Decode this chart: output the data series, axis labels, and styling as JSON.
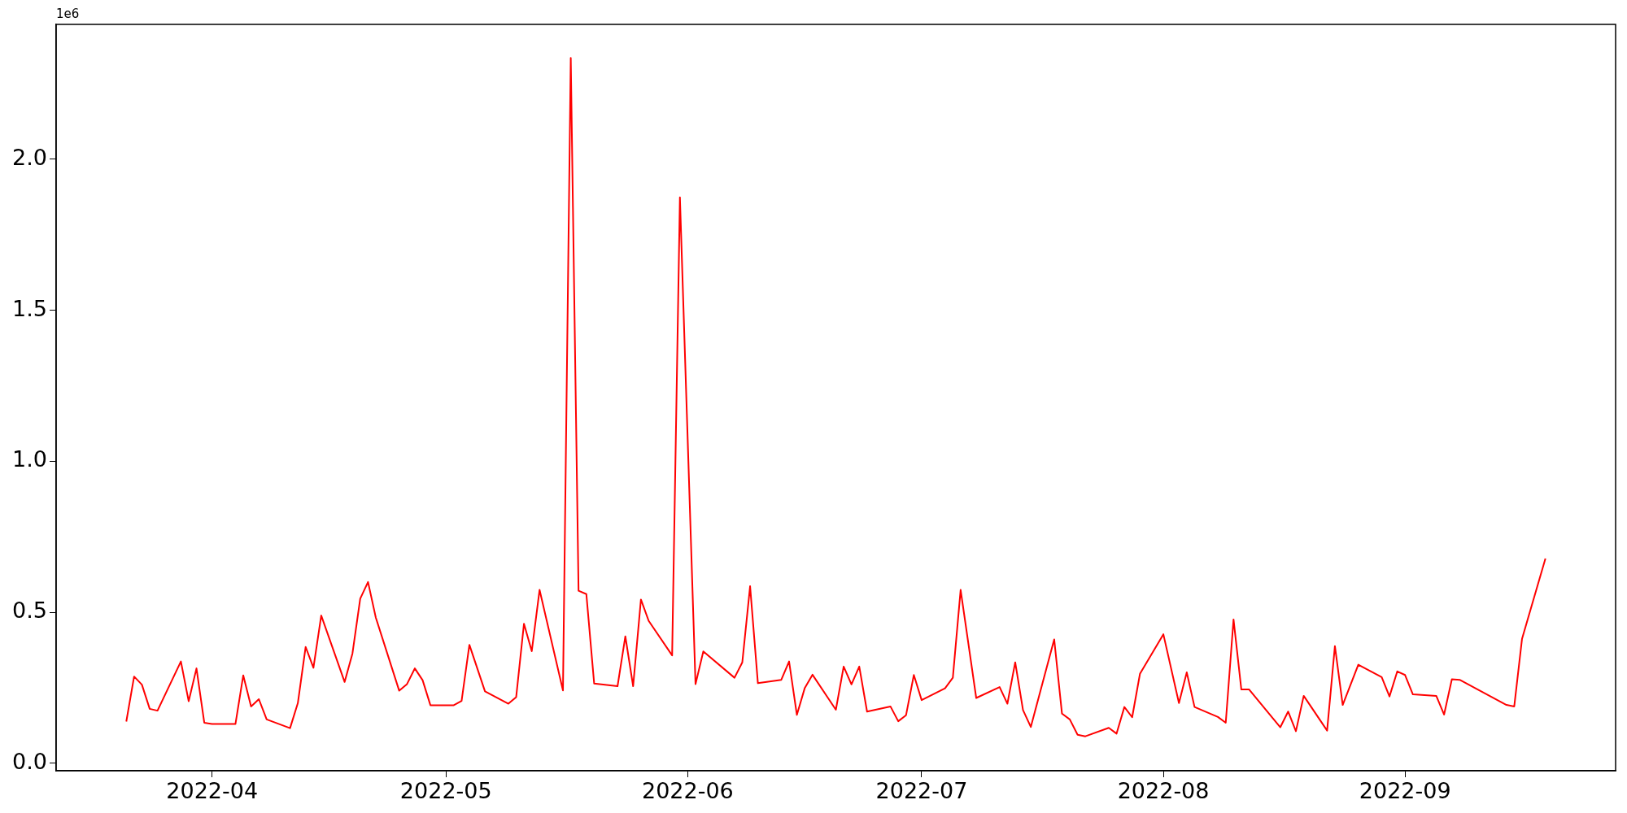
{
  "chart_data": {
    "type": "line",
    "color": "#ff0000",
    "marker": "none",
    "line_style": "solid",
    "x": [
      "2022-03-21",
      "2022-03-22",
      "2022-03-23",
      "2022-03-24",
      "2022-03-25",
      "2022-03-28",
      "2022-03-29",
      "2022-03-30",
      "2022-03-31",
      "2022-04-01",
      "2022-04-04",
      "2022-04-05",
      "2022-04-06",
      "2022-04-07",
      "2022-04-08",
      "2022-04-11",
      "2022-04-12",
      "2022-04-13",
      "2022-04-14",
      "2022-04-15",
      "2022-04-18",
      "2022-04-19",
      "2022-04-20",
      "2022-04-21",
      "2022-04-22",
      "2022-04-25",
      "2022-04-26",
      "2022-04-27",
      "2022-04-28",
      "2022-04-29",
      "2022-05-02",
      "2022-05-03",
      "2022-05-04",
      "2022-05-06",
      "2022-05-09",
      "2022-05-10",
      "2022-05-11",
      "2022-05-12",
      "2022-05-13",
      "2022-05-16",
      "2022-05-17",
      "2022-05-18",
      "2022-05-19",
      "2022-05-20",
      "2022-05-23",
      "2022-05-24",
      "2022-05-25",
      "2022-05-26",
      "2022-05-27",
      "2022-05-30",
      "2022-05-31",
      "2022-06-02",
      "2022-06-03",
      "2022-06-07",
      "2022-06-08",
      "2022-06-09",
      "2022-06-10",
      "2022-06-13",
      "2022-06-14",
      "2022-06-15",
      "2022-06-16",
      "2022-06-17",
      "2022-06-20",
      "2022-06-21",
      "2022-06-22",
      "2022-06-23",
      "2022-06-24",
      "2022-06-27",
      "2022-06-28",
      "2022-06-29",
      "2022-06-30",
      "2022-07-01",
      "2022-07-04",
      "2022-07-05",
      "2022-07-06",
      "2022-07-08",
      "2022-07-11",
      "2022-07-12",
      "2022-07-13",
      "2022-07-14",
      "2022-07-15",
      "2022-07-18",
      "2022-07-19",
      "2022-07-20",
      "2022-07-21",
      "2022-07-22",
      "2022-07-25",
      "2022-07-26",
      "2022-07-27",
      "2022-07-28",
      "2022-07-29",
      "2022-08-01",
      "2022-08-03",
      "2022-08-04",
      "2022-08-05",
      "2022-08-08",
      "2022-08-09",
      "2022-08-10",
      "2022-08-11",
      "2022-08-12",
      "2022-08-16",
      "2022-08-17",
      "2022-08-18",
      "2022-08-19",
      "2022-08-22",
      "2022-08-23",
      "2022-08-24",
      "2022-08-26",
      "2022-08-29",
      "2022-08-30",
      "2022-08-31",
      "2022-09-01",
      "2022-09-02",
      "2022-09-05",
      "2022-09-06",
      "2022-09-07",
      "2022-09-08",
      "2022-09-14",
      "2022-09-15",
      "2022-09-16",
      "2022-09-19"
    ],
    "values": [
      0.138,
      0.287,
      0.26,
      0.18,
      0.174,
      0.337,
      0.205,
      0.314,
      0.134,
      0.13,
      0.13,
      0.291,
      0.188,
      0.212,
      0.145,
      0.116,
      0.199,
      0.385,
      0.316,
      0.489,
      0.269,
      0.363,
      0.545,
      0.6,
      0.482,
      0.24,
      0.262,
      0.314,
      0.275,
      0.192,
      0.192,
      0.206,
      0.392,
      0.238,
      0.197,
      0.219,
      0.462,
      0.371,
      0.574,
      0.241,
      2.336,
      0.571,
      0.56,
      0.264,
      0.255,
      0.42,
      0.255,
      0.542,
      0.471,
      0.357,
      1.874,
      0.262,
      0.37,
      0.283,
      0.334,
      0.586,
      0.265,
      0.276,
      0.337,
      0.16,
      0.248,
      0.293,
      0.177,
      0.32,
      0.261,
      0.32,
      0.171,
      0.188,
      0.139,
      0.159,
      0.292,
      0.209,
      0.248,
      0.283,
      0.574,
      0.216,
      0.252,
      0.197,
      0.334,
      0.176,
      0.12,
      0.41,
      0.164,
      0.145,
      0.094,
      0.089,
      0.117,
      0.098,
      0.186,
      0.152,
      0.296,
      0.427,
      0.199,
      0.301,
      0.186,
      0.153,
      0.134,
      0.476,
      0.244,
      0.244,
      0.119,
      0.171,
      0.106,
      0.223,
      0.108,
      0.388,
      0.193,
      0.326,
      0.285,
      0.221,
      0.304,
      0.292,
      0.228,
      0.223,
      0.161,
      0.278,
      0.276,
      0.193,
      0.188,
      0.412,
      0.678
    ],
    "xlim": [
      "2022-03-12",
      "2022-09-28"
    ],
    "xticks": [
      "2022-04",
      "2022-05",
      "2022-06",
      "2022-07",
      "2022-08",
      "2022-09"
    ],
    "ylim": [
      -0.025,
      2.447
    ],
    "yticks": [
      {
        "value": 0,
        "label": "0.0"
      },
      0.5,
      {
        "value": 1,
        "label": "1.0"
      },
      1.5,
      {
        "value": 2,
        "label": "2.0"
      }
    ],
    "annotations": [
      "1e6"
    ]
  }
}
